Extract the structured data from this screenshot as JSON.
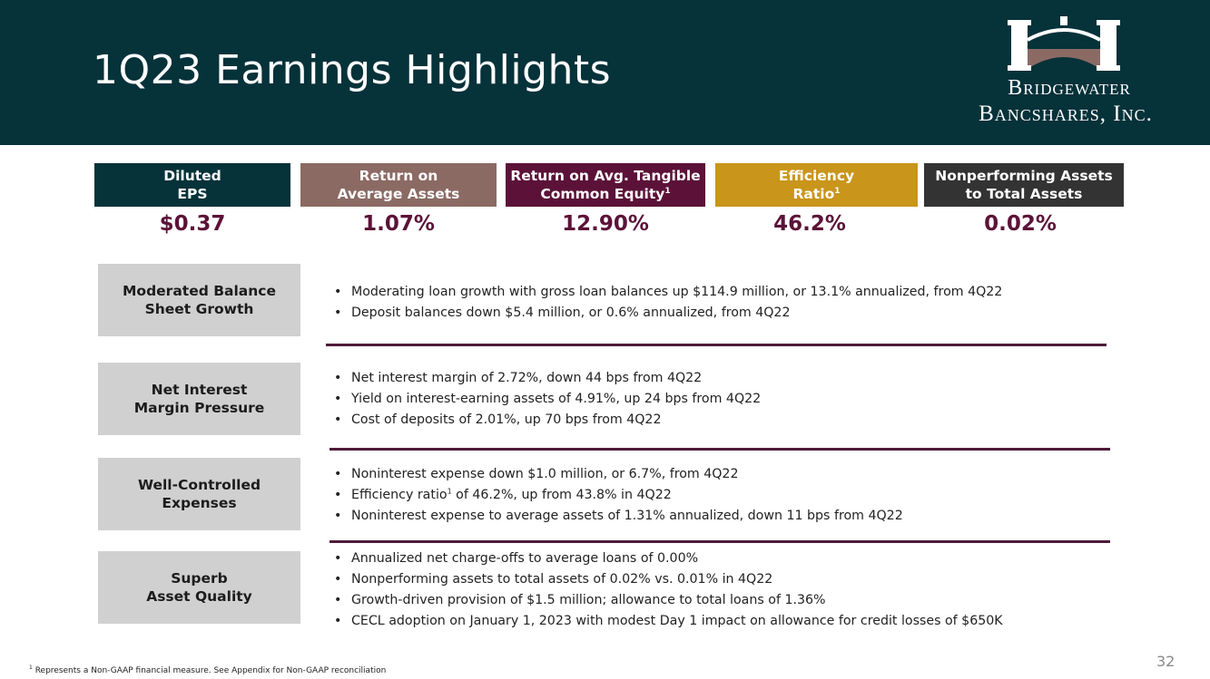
{
  "title": "1Q23 Earnings Highlights",
  "logo": {
    "line1": "Bridgewater",
    "line2": "Bancshares, Inc."
  },
  "metrics": [
    {
      "label_line1": "Diluted",
      "label_line2": "EPS",
      "sup": "",
      "value": "$0.37",
      "color": "#06323a"
    },
    {
      "label_line1": "Return on",
      "label_line2": "Average Assets",
      "sup": "",
      "value": "1.07%",
      "color": "#8b6a64"
    },
    {
      "label_line1": "Return on Avg. Tangible",
      "label_line2": "Common Equity",
      "sup": "1",
      "value": "12.90%",
      "color": "#5c1238"
    },
    {
      "label_line1": "Efficiency",
      "label_line2": "Ratio",
      "sup": "1",
      "value": "46.2%",
      "color": "#c9951a"
    },
    {
      "label_line1": "Nonperforming Assets",
      "label_line2": "to Total Assets",
      "sup": "",
      "value": "0.02%",
      "color": "#333333"
    }
  ],
  "sections": [
    {
      "label_line1": "Moderated Balance",
      "label_line2": "Sheet Growth",
      "bullets": [
        "Moderating loan growth with gross loan balances up $114.9 million, or 13.1% annualized, from 4Q22",
        "Deposit balances down $5.4 million, or 0.6% annualized, from 4Q22"
      ]
    },
    {
      "label_line1": "Net Interest",
      "label_line2": "Margin Pressure",
      "bullets": [
        "Net interest margin of 2.72%, down 44 bps from 4Q22",
        "Yield on interest-earning assets of 4.91%, up 24 bps from 4Q22",
        "Cost of deposits of 2.01%, up 70 bps from 4Q22"
      ]
    },
    {
      "label_line1": "Well-Controlled",
      "label_line2": "Expenses",
      "bullets": [
        "Noninterest expense down $1.0 million, or 6.7%, from 4Q22",
        {
          "before": "Efficiency ratio",
          "sup": "1",
          "after": " of 46.2%, up from 43.8% in 4Q22"
        },
        "Noninterest expense to average assets of 1.31% annualized, down 11 bps from 4Q22"
      ]
    },
    {
      "label_line1": "Superb",
      "label_line2": "Asset Quality",
      "bullets": [
        "Annualized net charge-offs to average loans of 0.00%",
        "Nonperforming assets to total assets of 0.02% vs. 0.01% in 4Q22",
        "Growth-driven provision of $1.5 million; allowance to total loans of 1.36%",
        "CECL adoption on January 1, 2023 with modest Day 1 impact on allowance for credit losses of $650K"
      ]
    }
  ],
  "footnote": {
    "sup": "1",
    "text": " Represents a Non-GAAP financial measure. See Appendix for Non-GAAP reconciliation"
  },
  "page_number": "32"
}
